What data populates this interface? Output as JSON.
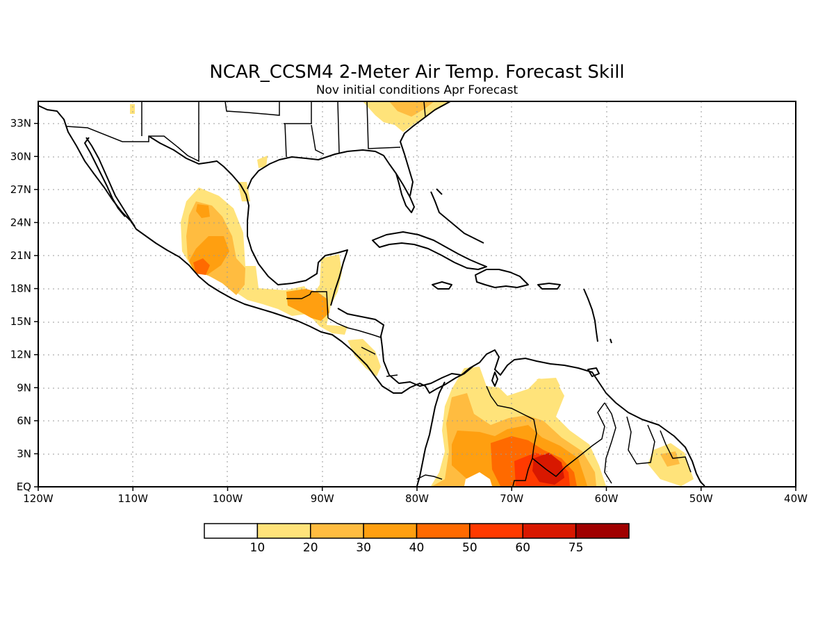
{
  "map": {
    "title": "NCAR_CCSM4 2-Meter Air Temp. Forecast Skill",
    "subtitle": "Nov initial conditions  Apr Forecast",
    "lon_range": [
      -120,
      -40
    ],
    "lat_range": [
      0,
      35
    ],
    "lon_labels": [
      "120W",
      "110W",
      "100W",
      "90W",
      "80W",
      "70W",
      "60W",
      "50W",
      "40W"
    ],
    "lat_labels": [
      "EQ",
      "3N",
      "6N",
      "9N",
      "12N",
      "15N",
      "18N",
      "21N",
      "24N",
      "27N",
      "30N",
      "33N"
    ],
    "colorbar": {
      "labels": [
        "10",
        "20",
        "30",
        "40",
        "50",
        "60",
        "75"
      ],
      "colors": [
        "#ffffff",
        "#ffe37a",
        "#ffbc40",
        "#ff9f10",
        "#ff6a00",
        "#ff3a00",
        "#d81800",
        "#a00000"
      ]
    }
  }
}
